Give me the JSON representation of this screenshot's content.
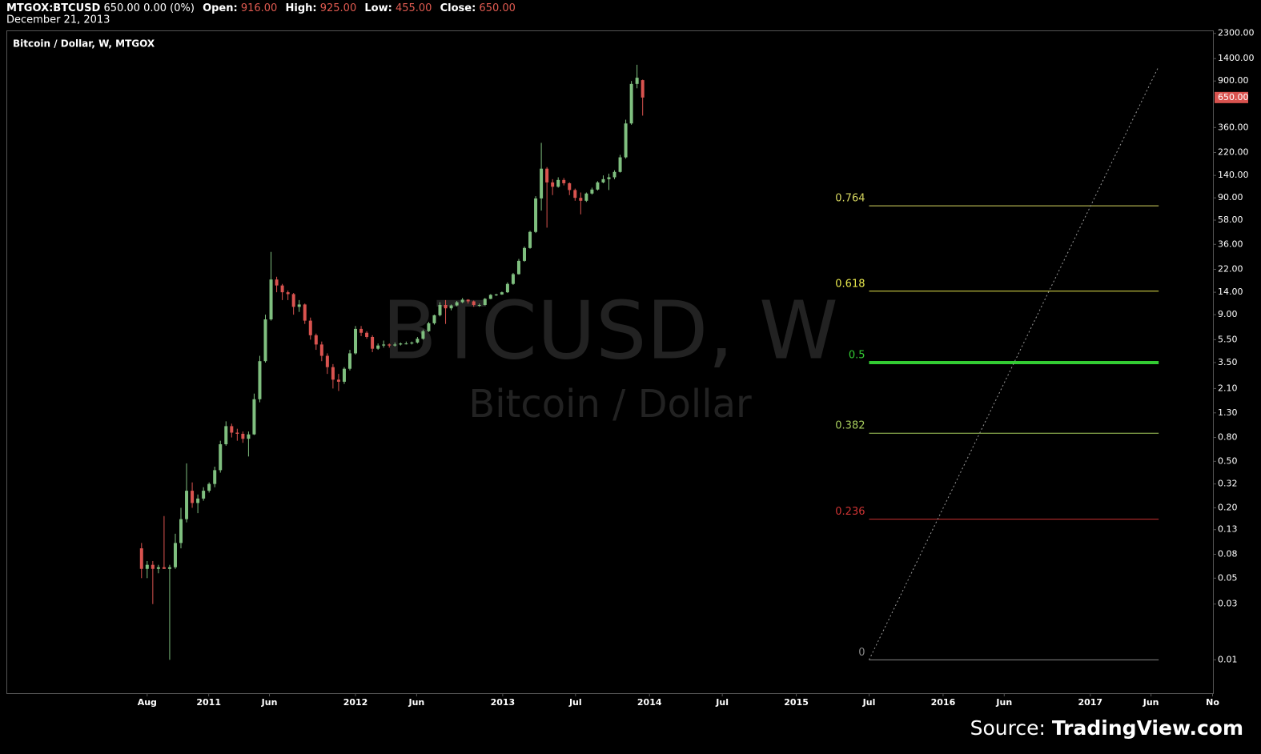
{
  "header": {
    "symbol": "MTGOX:BTCUSD",
    "quote": "650.00 0.00 (0%)",
    "open_label": "Open:",
    "open": "916.00",
    "high_label": "High:",
    "high": "925.00",
    "low_label": "Low:",
    "low": "455.00",
    "close_label": "Close:",
    "close": "650.00",
    "date": "December 21, 2013"
  },
  "chart_data": {
    "type": "candlestick",
    "legend": "Bitcoin / Dollar, W, MTGOX",
    "watermark": "BTCUSD, W",
    "watermark_subtitle": "Bitcoin / Dollar",
    "log_scale": true,
    "up_color": "#7fbf7f",
    "down_color": "#d9534f",
    "xlim": [
      "2009-08-16",
      "2017-11-04"
    ],
    "ylim": [
      0.0051,
      2440
    ],
    "xticks": [
      {
        "value": "2010-08-01",
        "label": "Aug"
      },
      {
        "value": "2011-01-01",
        "label": "2011"
      },
      {
        "value": "2011-06-01",
        "label": "Jun"
      },
      {
        "value": "2012-01-01",
        "label": "2012"
      },
      {
        "value": "2012-06-01",
        "label": "Jun"
      },
      {
        "value": "2013-01-01",
        "label": "2013"
      },
      {
        "value": "2013-07-01",
        "label": "Jul"
      },
      {
        "value": "2014-01-01",
        "label": "2014"
      },
      {
        "value": "2014-07-01",
        "label": "Jul"
      },
      {
        "value": "2015-01-01",
        "label": "2015"
      },
      {
        "value": "2015-07-01",
        "label": "Jul"
      },
      {
        "value": "2016-01-01",
        "label": "2016"
      },
      {
        "value": "2016-06-01",
        "label": "Jun"
      },
      {
        "value": "2017-01-01",
        "label": "2017"
      },
      {
        "value": "2017-06-01",
        "label": "Jun"
      },
      {
        "value": "2017-11-01",
        "label": "No"
      }
    ],
    "yticks": [
      {
        "value": 2300,
        "label": "2300.00"
      },
      {
        "value": 1400,
        "label": "1400.00"
      },
      {
        "value": 900,
        "label": "900.00"
      },
      {
        "value": 360,
        "label": "360.00"
      },
      {
        "value": 220,
        "label": "220.00"
      },
      {
        "value": 140,
        "label": "140.00"
      },
      {
        "value": 90,
        "label": "90.00"
      },
      {
        "value": 58,
        "label": "58.00"
      },
      {
        "value": 36,
        "label": "36.00"
      },
      {
        "value": 22,
        "label": "22.00"
      },
      {
        "value": 14,
        "label": "14.00"
      },
      {
        "value": 9,
        "label": "9.00"
      },
      {
        "value": 5.5,
        "label": "5.50"
      },
      {
        "value": 3.5,
        "label": "3.50"
      },
      {
        "value": 2.1,
        "label": "2.10"
      },
      {
        "value": 1.3,
        "label": "1.30"
      },
      {
        "value": 0.8,
        "label": "0.80"
      },
      {
        "value": 0.5,
        "label": "0.50"
      },
      {
        "value": 0.32,
        "label": "0.32"
      },
      {
        "value": 0.2,
        "label": "0.20"
      },
      {
        "value": 0.13,
        "label": "0.13"
      },
      {
        "value": 0.08,
        "label": "0.08"
      },
      {
        "value": 0.05,
        "label": "0.05"
      },
      {
        "value": 0.03,
        "label": "0.03"
      },
      {
        "value": 0.01,
        "label": "0.01"
      }
    ],
    "price_label": {
      "value": 650,
      "label": "650.00",
      "color": "#d9534f"
    },
    "x": [
      "2010-07-18",
      "2010-08-01",
      "2010-08-15",
      "2010-08-29",
      "2010-09-12",
      "2010-09-26",
      "2010-10-10",
      "2010-10-24",
      "2010-11-07",
      "2010-11-21",
      "2010-12-05",
      "2010-12-19",
      "2011-01-02",
      "2011-01-16",
      "2011-01-30",
      "2011-02-13",
      "2011-02-27",
      "2011-03-13",
      "2011-03-27",
      "2011-04-10",
      "2011-04-24",
      "2011-05-08",
      "2011-05-22",
      "2011-06-05",
      "2011-06-19",
      "2011-07-03",
      "2011-07-17",
      "2011-07-31",
      "2011-08-14",
      "2011-08-28",
      "2011-09-11",
      "2011-09-25",
      "2011-10-09",
      "2011-10-23",
      "2011-11-06",
      "2011-11-20",
      "2011-12-04",
      "2011-12-18",
      "2012-01-01",
      "2012-01-15",
      "2012-01-29",
      "2012-02-12",
      "2012-02-26",
      "2012-03-11",
      "2012-03-25",
      "2012-04-08",
      "2012-04-22",
      "2012-05-06",
      "2012-05-20",
      "2012-06-03",
      "2012-06-17",
      "2012-07-01",
      "2012-07-15",
      "2012-07-29",
      "2012-08-12",
      "2012-08-26",
      "2012-09-09",
      "2012-09-23",
      "2012-10-07",
      "2012-10-21",
      "2012-11-04",
      "2012-11-18",
      "2012-12-02",
      "2012-12-16",
      "2012-12-30",
      "2013-01-13",
      "2013-01-27",
      "2013-02-10",
      "2013-02-24",
      "2013-03-10",
      "2013-03-24",
      "2013-04-07",
      "2013-04-21",
      "2013-05-05",
      "2013-05-19",
      "2013-06-02",
      "2013-06-16",
      "2013-06-30",
      "2013-07-14",
      "2013-07-28",
      "2013-08-11",
      "2013-08-25",
      "2013-09-08",
      "2013-09-22",
      "2013-10-06",
      "2013-10-20",
      "2013-11-03",
      "2013-11-17",
      "2013-12-01",
      "2013-12-15"
    ],
    "open": [
      0.09,
      0.06,
      0.065,
      0.06,
      0.062,
      0.06,
      0.062,
      0.1,
      0.16,
      0.28,
      0.22,
      0.24,
      0.28,
      0.32,
      0.42,
      0.7,
      1.0,
      0.88,
      0.86,
      0.78,
      0.85,
      1.7,
      3.6,
      8.2,
      18,
      16,
      14,
      13.5,
      10.5,
      11,
      8,
      6,
      5,
      4,
      3.2,
      2.5,
      2.4,
      3.1,
      4.2,
      6.8,
      6.3,
      5.8,
      4.6,
      4.9,
      5.0,
      4.9,
      5.0,
      5.1,
      5.1,
      5.2,
      5.6,
      6.5,
      7.6,
      8.9,
      10.9,
      10.2,
      10.8,
      11.5,
      12.1,
      11.7,
      10.9,
      10.9,
      12.3,
      13.3,
      13.4,
      14,
      16.5,
      20,
      26,
      33.5,
      46,
      89,
      160,
      122,
      112,
      128,
      120,
      105,
      90,
      85,
      98,
      106,
      122,
      130,
      135,
      150,
      200,
      390,
      850,
      916
    ],
    "high": [
      0.1,
      0.07,
      0.07,
      0.065,
      0.17,
      0.065,
      0.12,
      0.2,
      0.48,
      0.33,
      0.26,
      0.3,
      0.33,
      0.45,
      0.75,
      1.1,
      1.05,
      0.95,
      0.9,
      0.9,
      1.9,
      4.0,
      9.0,
      31,
      19,
      16.5,
      14.5,
      13.8,
      12,
      11.2,
      8.5,
      6.2,
      5.3,
      4.2,
      3.4,
      2.8,
      3.2,
      4.5,
      7.2,
      7.2,
      6.5,
      6.0,
      5.1,
      5.4,
      5.1,
      5.2,
      5.2,
      5.3,
      5.3,
      5.8,
      6.7,
      7.8,
      9.0,
      11.5,
      12,
      11,
      11.8,
      12.5,
      12.2,
      11.9,
      11.2,
      12.5,
      13.5,
      13.6,
      14.2,
      17,
      20.5,
      27,
      34.5,
      47,
      93,
      266,
      165,
      130,
      135,
      133,
      122,
      108,
      100,
      100,
      110,
      125,
      140,
      145,
      155,
      210,
      420,
      900,
      1240,
      925
    ],
    "low": [
      0.05,
      0.05,
      0.03,
      0.055,
      0.06,
      0.01,
      0.06,
      0.09,
      0.15,
      0.2,
      0.18,
      0.23,
      0.27,
      0.3,
      0.4,
      0.68,
      0.8,
      0.75,
      0.72,
      0.55,
      0.84,
      1.6,
      3.5,
      8.0,
      14,
      12,
      12,
      9,
      9.5,
      7.5,
      5.5,
      4.5,
      3.6,
      2.8,
      2.1,
      2.0,
      2.3,
      3.0,
      4.1,
      5.9,
      5.6,
      4.3,
      4.5,
      4.7,
      4.7,
      4.8,
      4.9,
      5.0,
      5.0,
      5.1,
      5.5,
      6.4,
      7.4,
      8.7,
      7.5,
      9.8,
      10.6,
      11.3,
      11.2,
      10.5,
      10.5,
      10.8,
      12.2,
      13.0,
      13.3,
      13.8,
      16.2,
      19.8,
      25.5,
      33,
      45,
      70,
      50,
      95,
      110,
      115,
      95,
      85,
      65,
      83,
      96,
      104,
      120,
      105,
      130,
      148,
      195,
      380,
      780,
      455
    ],
    "close": [
      0.06,
      0.065,
      0.06,
      0.062,
      0.06,
      0.062,
      0.1,
      0.16,
      0.28,
      0.22,
      0.24,
      0.28,
      0.32,
      0.42,
      0.7,
      1.0,
      0.88,
      0.86,
      0.78,
      0.85,
      1.7,
      3.6,
      8.2,
      18,
      16,
      14,
      13.5,
      10.5,
      11,
      8,
      6,
      5,
      4,
      3.2,
      2.5,
      2.4,
      3.1,
      4.2,
      6.8,
      6.3,
      5.8,
      4.6,
      4.9,
      5.0,
      4.9,
      5.0,
      5.1,
      5.1,
      5.2,
      5.6,
      6.5,
      7.6,
      8.9,
      10.9,
      10.2,
      10.8,
      11.5,
      12.1,
      11.7,
      10.9,
      10.9,
      12.3,
      13.3,
      13.4,
      14,
      16.5,
      20,
      26,
      33.5,
      46,
      89,
      160,
      122,
      112,
      128,
      120,
      105,
      90,
      85,
      98,
      106,
      122,
      130,
      135,
      150,
      200,
      390,
      850,
      960,
      650
    ],
    "fib_x": [
      "2015-07-01",
      "2017-06-20"
    ],
    "fib_levels": [
      {
        "level": 0.764,
        "price": 77,
        "color": "#d8d860",
        "width": 1
      },
      {
        "level": 0.618,
        "price": 14.3,
        "color": "#e6e64c",
        "width": 1
      },
      {
        "level": 0.5,
        "price": 3.5,
        "color": "#33cc33",
        "width": 4
      },
      {
        "level": 0.382,
        "price": 0.87,
        "color": "#a6cc5c",
        "width": 1
      },
      {
        "level": 0.236,
        "price": 0.16,
        "color": "#cc3333",
        "width": 1
      },
      {
        "level": 0,
        "price": 0.01,
        "color": "#888888",
        "width": 1
      }
    ],
    "trend_line": {
      "start": {
        "x": "2015-07-01",
        "y": 0.01
      },
      "end": {
        "x": "2017-06-20",
        "y": 1200
      },
      "color": "#999999"
    }
  },
  "source": {
    "prefix": "Source:",
    "site": "TradingView.com"
  }
}
